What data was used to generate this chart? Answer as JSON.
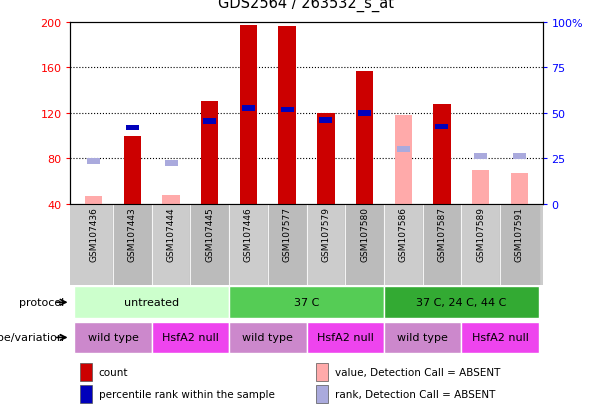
{
  "title": "GDS2564 / 263532_s_at",
  "samples": [
    "GSM107436",
    "GSM107443",
    "GSM107444",
    "GSM107445",
    "GSM107446",
    "GSM107577",
    "GSM107579",
    "GSM107580",
    "GSM107586",
    "GSM107587",
    "GSM107589",
    "GSM107591"
  ],
  "count_values": [
    null,
    100,
    null,
    130,
    197,
    196,
    120,
    157,
    null,
    128,
    null,
    null
  ],
  "count_absent_values": [
    47,
    null,
    48,
    null,
    null,
    null,
    null,
    null,
    118,
    null,
    70,
    67
  ],
  "percentile_values": [
    null,
    107,
    null,
    113,
    124,
    123,
    114,
    120,
    null,
    108,
    null,
    null
  ],
  "percentile_absent_values": [
    78,
    null,
    76,
    null,
    null,
    null,
    null,
    null,
    88,
    null,
    82,
    82
  ],
  "ylim_left": [
    40,
    200
  ],
  "ylim_right": [
    0,
    100
  ],
  "yticks_left": [
    40,
    80,
    120,
    160,
    200
  ],
  "yticks_right": [
    0,
    25,
    50,
    75,
    100
  ],
  "ytick_labels_left": [
    "40",
    "80",
    "120",
    "160",
    "200"
  ],
  "ytick_labels_right": [
    "0",
    "25",
    "50",
    "75",
    "100%"
  ],
  "count_color": "#CC0000",
  "count_absent_color": "#FFAAAA",
  "percentile_color": "#0000BB",
  "percentile_absent_color": "#AAAADD",
  "protocol_groups": [
    {
      "label": "untreated",
      "start": 0,
      "end": 4,
      "color": "#CCFFCC"
    },
    {
      "label": "37 C",
      "start": 4,
      "end": 8,
      "color": "#55CC55"
    },
    {
      "label": "37 C, 24 C, 44 C",
      "start": 8,
      "end": 12,
      "color": "#33AA33"
    }
  ],
  "genotype_groups": [
    {
      "label": "wild type",
      "start": 0,
      "end": 2,
      "color": "#CC88CC"
    },
    {
      "label": "HsfA2 null",
      "start": 2,
      "end": 4,
      "color": "#EE44EE"
    },
    {
      "label": "wild type",
      "start": 4,
      "end": 6,
      "color": "#CC88CC"
    },
    {
      "label": "HsfA2 null",
      "start": 6,
      "end": 8,
      "color": "#EE44EE"
    },
    {
      "label": "wild type",
      "start": 8,
      "end": 10,
      "color": "#CC88CC"
    },
    {
      "label": "HsfA2 null",
      "start": 10,
      "end": 12,
      "color": "#EE44EE"
    }
  ],
  "protocol_label": "protocol",
  "genotype_label": "genotype/variation",
  "legend_items": [
    {
      "label": "count",
      "color": "#CC0000"
    },
    {
      "label": "percentile rank within the sample",
      "color": "#0000BB"
    },
    {
      "label": "value, Detection Call = ABSENT",
      "color": "#FFAAAA"
    },
    {
      "label": "rank, Detection Call = ABSENT",
      "color": "#AAAADD"
    }
  ],
  "names_bg_color": "#CCCCCC",
  "grid_color": "#000000",
  "bar_width": 0.45
}
